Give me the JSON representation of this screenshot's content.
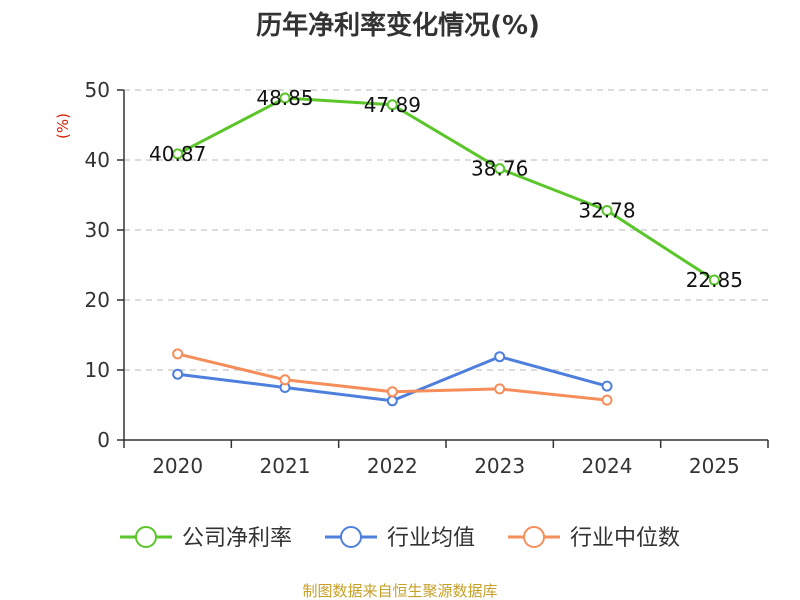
{
  "chart_data": {
    "type": "line",
    "title": "历年净利率变化情况(%)",
    "ylabel": "(%)",
    "xlabel": "",
    "categories": [
      "2020",
      "2021",
      "2022",
      "2023",
      "2024",
      "2025"
    ],
    "ylim": [
      0,
      50
    ],
    "yticks": [
      0,
      10,
      20,
      30,
      40,
      50
    ],
    "grid": true,
    "legend_position": "bottom",
    "series": [
      {
        "name": "公司净利率",
        "color": "#5ac62a",
        "values": [
          40.87,
          48.85,
          47.89,
          38.76,
          32.78,
          22.85
        ],
        "labels": [
          "40.87",
          "48.85",
          "47.89",
          "38.76",
          "32.78",
          "22.85"
        ]
      },
      {
        "name": "行业均值",
        "color": "#4e7fdc",
        "values": [
          9.4,
          7.5,
          5.6,
          11.9,
          7.7,
          null
        ]
      },
      {
        "name": "行业中位数",
        "color": "#f58e5a",
        "values": [
          12.3,
          8.6,
          6.9,
          7.3,
          5.7,
          null
        ]
      }
    ],
    "source": "制图数据来自恒生聚源数据库",
    "source_color": "#c8a028",
    "ylabel_color": "#d81e06"
  }
}
